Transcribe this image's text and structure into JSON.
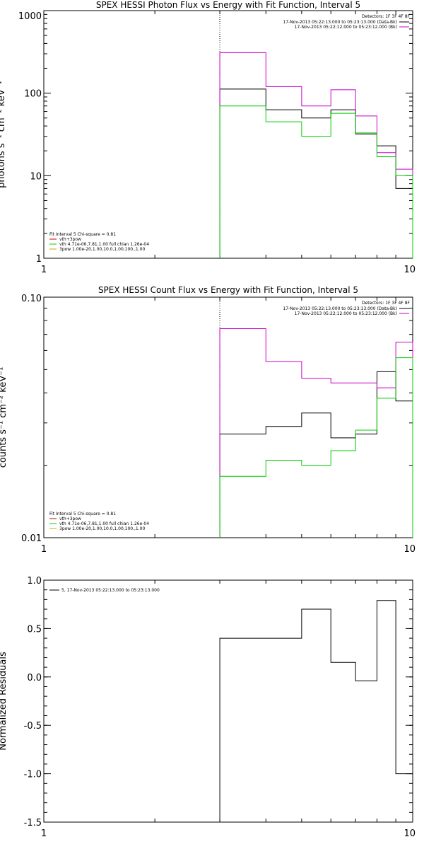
{
  "chart_data": [
    {
      "type": "line",
      "title": "SPEX HESSI Photon Flux vs Energy with Fit Function, Interval 5",
      "xlabel": "",
      "ylabel": "photons s⁻¹ cm⁻² keV⁻¹",
      "xscale": "log",
      "yscale": "log",
      "xlim": [
        1,
        10
      ],
      "ylim": [
        1,
        1000
      ],
      "xticks": [
        {
          "v": 1,
          "label": "1"
        },
        {
          "v": 10,
          "label": "10"
        }
      ],
      "yticks": [
        {
          "v": 1,
          "label": "1"
        },
        {
          "v": 10,
          "label": "10"
        },
        {
          "v": 100,
          "label": "100"
        },
        {
          "v": 1000,
          "label": "1000"
        }
      ],
      "vline": 3,
      "bin_edges": [
        3,
        4,
        5,
        6,
        7,
        8,
        9,
        10
      ],
      "legend_header": "Detectors: 1F 3F 4F 8F",
      "legend_lines": [
        "17-Nov-2013 05:22:13.000 to 05:23:13.000 (Data-Bk)",
        "17-Nov-2013 05:22:12.000 to 05:23:12.000 (Bk)"
      ],
      "fit_label": "Fit Interval  5   Chi-square = 0.81",
      "fit_lines": [
        "vth+3pow",
        "vth 4.71e-06,7.81,1.00  full chian 1.26e-04",
        "3pow 1.00e-20,1.00,10.0,1.00,100.,1.00"
      ],
      "series": [
        {
          "color": "#000000",
          "values": [
            112,
            63,
            50,
            63,
            32,
            23,
            7
          ]
        },
        {
          "color": "#cc00cc",
          "values": [
            310,
            120,
            70,
            110,
            53,
            19,
            12
          ]
        },
        {
          "color": "#00cc00",
          "values": [
            70,
            45,
            30,
            57,
            33,
            17,
            10
          ]
        }
      ]
    },
    {
      "type": "line",
      "title": "SPEX HESSI Count Flux vs Energy with Fit Function, Interval 5",
      "xlabel": "",
      "ylabel": "counts s⁻¹ cm⁻² keV⁻¹",
      "xscale": "log",
      "yscale": "log",
      "xlim": [
        1,
        10
      ],
      "ylim": [
        0.01,
        0.1
      ],
      "xticks": [
        {
          "v": 1,
          "label": "1"
        },
        {
          "v": 10,
          "label": "10"
        }
      ],
      "yticks": [
        {
          "v": 0.01,
          "label": "0.01"
        },
        {
          "v": 0.1,
          "label": "0.10"
        }
      ],
      "vline": 3,
      "bin_edges": [
        3,
        4,
        5,
        6,
        7,
        8,
        9,
        10
      ],
      "legend_header": "Detectors: 1F 3F 4F 8F",
      "legend_lines": [
        "17-Nov-2013 05:22:13.000 to 05:23:13.000 (Data-Bk)",
        "17-Nov-2013 05:22:12.000 to 05:23:12.000 (Bk)"
      ],
      "fit_label": "Fit Interval  5   Chi-square = 0.81",
      "fit_lines": [
        "vth+3pow",
        "vth 4.71e-06,7.81,1.00  full chian 1.26e-04",
        "3pow 1.00e-20,1.00,10.0,1.00,100.,1.00"
      ],
      "series": [
        {
          "color": "#000000",
          "values": [
            0.027,
            0.029,
            0.033,
            0.026,
            0.027,
            0.049,
            0.037
          ]
        },
        {
          "color": "#cc00cc",
          "values": [
            0.074,
            0.054,
            0.046,
            0.044,
            0.044,
            0.042,
            0.065
          ]
        },
        {
          "color": "#00cc00",
          "values": [
            0.018,
            0.021,
            0.02,
            0.023,
            0.028,
            0.038,
            0.056
          ]
        }
      ]
    },
    {
      "type": "line",
      "title": "",
      "xlabel": "",
      "ylabel": "Normalized Residuals",
      "xscale": "log",
      "yscale": "linear",
      "xlim": [
        1,
        10
      ],
      "ylim": [
        -1.5,
        1.0
      ],
      "xticks": [
        {
          "v": 1,
          "label": "1"
        },
        {
          "v": 10,
          "label": "10"
        }
      ],
      "yticks": [
        {
          "v": 1.0,
          "label": "1.0"
        },
        {
          "v": 0.5,
          "label": "0.5"
        },
        {
          "v": 0.0,
          "label": "0.0"
        },
        {
          "v": -0.5,
          "label": "-0.5"
        },
        {
          "v": -1.0,
          "label": "-1.0"
        },
        {
          "v": -1.5,
          "label": "-1.5"
        }
      ],
      "bin_edges": [
        3,
        4,
        5,
        6,
        7,
        8,
        9,
        10
      ],
      "legend_lines": [
        "5, 17-Nov-2013 05:22:13.000 to 05:23:13.000"
      ],
      "series": [
        {
          "color": "#000000",
          "values": [
            0.4,
            0.4,
            0.7,
            0.15,
            -0.04,
            0.79,
            -1.0
          ]
        }
      ]
    }
  ]
}
